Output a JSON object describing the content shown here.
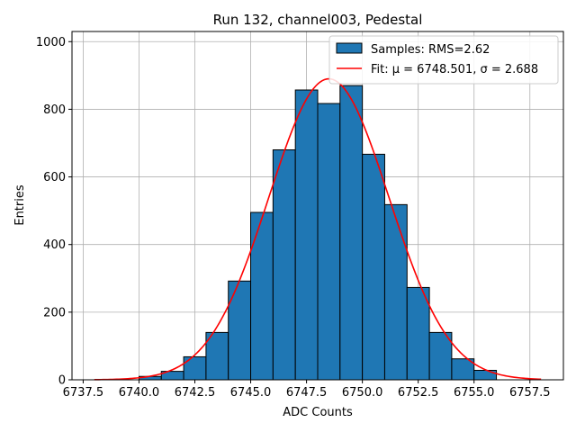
{
  "chart_data": {
    "type": "bar",
    "title": "Run 132, channel003, Pedestal",
    "xlabel": "ADC Counts",
    "ylabel": "Entries",
    "xlim": [
      6737.0,
      6759.0
    ],
    "ylim": [
      0,
      1030
    ],
    "xticks": [
      6737.5,
      6740.0,
      6742.5,
      6745.0,
      6747.5,
      6750.0,
      6752.5,
      6755.0,
      6757.5
    ],
    "xtick_labels": [
      "6737.5",
      "6740.0",
      "6742.5",
      "6745.0",
      "6747.5",
      "6750.0",
      "6752.5",
      "6755.0",
      "6757.5"
    ],
    "yticks": [
      0,
      200,
      400,
      600,
      800,
      1000
    ],
    "ytick_labels": [
      "0",
      "200",
      "400",
      "600",
      "800",
      "1000"
    ],
    "grid": true,
    "legend_position": "top-right",
    "histogram": {
      "name": "Samples: RMS=2.62",
      "color": "#1f77b4",
      "edge_color": "#000000",
      "bin_edges": [
        6740.0,
        6741.0,
        6742.0,
        6743.0,
        6744.0,
        6745.0,
        6746.0,
        6747.0,
        6748.0,
        6749.0,
        6750.0,
        6751.0,
        6752.0,
        6753.0,
        6754.0,
        6755.0,
        6756.0
      ],
      "counts": [
        10,
        25,
        68,
        140,
        292,
        495,
        680,
        857,
        817,
        870,
        667,
        518,
        273,
        140,
        62,
        28
      ]
    },
    "fit": {
      "name": "Fit: μ = 6748.501, σ = 2.688",
      "color": "#ff0000",
      "mu": 6748.501,
      "sigma": 2.688,
      "peak": 890,
      "x_range": [
        6738.0,
        6758.0
      ]
    }
  }
}
